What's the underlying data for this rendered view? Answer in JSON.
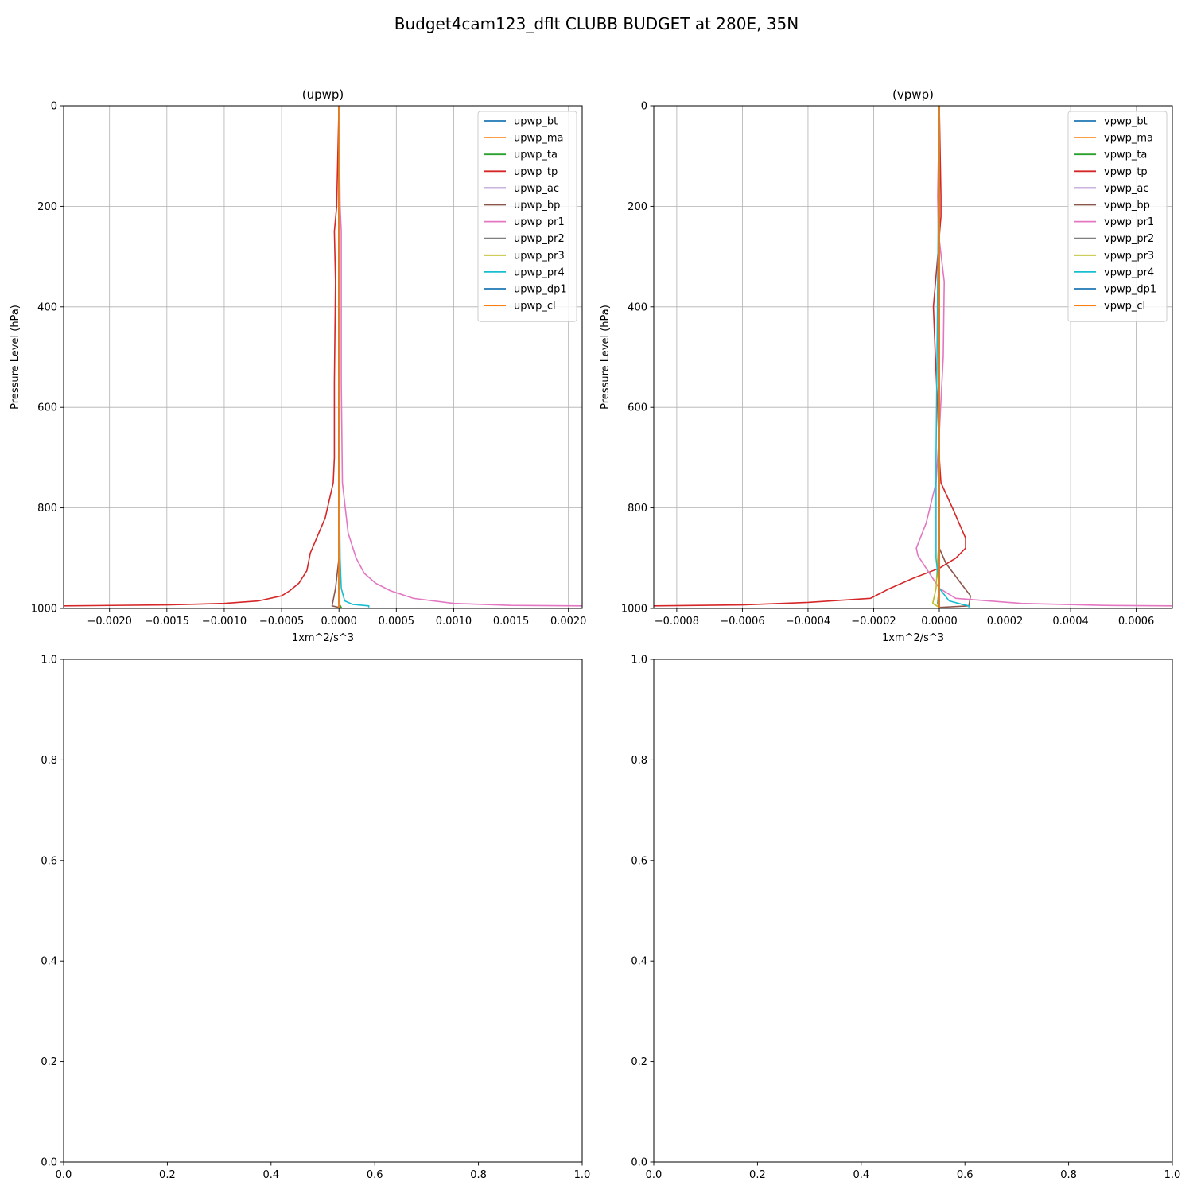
{
  "figure": {
    "title": "Budget4cam123_dflt CLUBB BUDGET at 280E, 35N"
  },
  "chart_data": [
    {
      "type": "line",
      "title": "(upwp)",
      "xlabel": "1xm^2/s^3",
      "ylabel": "Pressure Level (hPa)",
      "xlim": [
        -0.0024,
        0.00212
      ],
      "ylim": [
        1000,
        0
      ],
      "xticks": [
        -0.002,
        -0.0015,
        -0.001,
        -0.0005,
        0.0,
        0.0005,
        0.001,
        0.0015,
        0.002
      ],
      "xtick_labels": [
        "−0.0020",
        "−0.0015",
        "−0.0010",
        "−0.0005",
        "0.0000",
        "0.0005",
        "0.0010",
        "0.0015",
        "0.0020"
      ],
      "yticks": [
        0,
        200,
        400,
        600,
        800,
        1000
      ],
      "ytick_labels": [
        "0",
        "200",
        "400",
        "600",
        "800",
        "1000"
      ],
      "grid": true,
      "legend_position": "top-right",
      "series": [
        {
          "name": "upwp_bt",
          "color": "#1f77b4",
          "points": [
            [
              0,
              0
            ],
            [
              0,
              1000
            ]
          ]
        },
        {
          "name": "upwp_ma",
          "color": "#ff7f0e",
          "points": [
            [
              0,
              0
            ],
            [
              0,
              1000
            ]
          ]
        },
        {
          "name": "upwp_ta",
          "color": "#2ca02c",
          "points": [
            [
              0,
              0
            ],
            [
              0,
              990
            ],
            [
              2e-05,
              998
            ],
            [
              0,
              1000
            ]
          ]
        },
        {
          "name": "upwp_tp",
          "color": "#d62728",
          "points": [
            [
              0,
              0
            ],
            [
              -2e-05,
              200
            ],
            [
              -4e-05,
              250
            ],
            [
              -3e-05,
              350
            ],
            [
              -4e-05,
              550
            ],
            [
              -4e-05,
              700
            ],
            [
              -5e-05,
              750
            ],
            [
              -0.00012,
              820
            ],
            [
              -0.00025,
              890
            ],
            [
              -0.00028,
              925
            ],
            [
              -0.00035,
              950
            ],
            [
              -0.00043,
              965
            ],
            [
              -0.0005,
              975
            ],
            [
              -0.0007,
              985
            ],
            [
              -0.001,
              990
            ],
            [
              -0.0015,
              993
            ],
            [
              -0.0024,
              995
            ]
          ]
        },
        {
          "name": "upwp_ac",
          "color": "#9467bd",
          "points": [
            [
              0,
              0
            ],
            [
              0,
              1000
            ]
          ]
        },
        {
          "name": "upwp_bp",
          "color": "#8c564b",
          "points": [
            [
              0,
              0
            ],
            [
              0,
              900
            ],
            [
              -3e-05,
              960
            ],
            [
              -6e-05,
              995
            ],
            [
              0,
              998
            ]
          ]
        },
        {
          "name": "upwp_pr1",
          "color": "#e377c2",
          "points": [
            [
              0,
              0
            ],
            [
              1e-05,
              200
            ],
            [
              2e-05,
              250
            ],
            [
              2e-05,
              550
            ],
            [
              3e-05,
              750
            ],
            [
              8e-05,
              850
            ],
            [
              0.00015,
              900
            ],
            [
              0.00022,
              930
            ],
            [
              0.00032,
              950
            ],
            [
              0.00045,
              965
            ],
            [
              0.00065,
              980
            ],
            [
              0.001,
              990
            ],
            [
              0.0015,
              994
            ],
            [
              0.00212,
              995
            ]
          ]
        },
        {
          "name": "upwp_pr2",
          "color": "#7f7f7f",
          "points": [
            [
              0,
              0
            ],
            [
              0,
              1000
            ]
          ]
        },
        {
          "name": "upwp_pr3",
          "color": "#bcbd22",
          "points": [
            [
              0,
              0
            ],
            [
              0,
              1000
            ]
          ]
        },
        {
          "name": "upwp_pr4",
          "color": "#17becf",
          "points": [
            [
              0,
              0
            ],
            [
              0,
              700
            ],
            [
              1e-05,
              900
            ],
            [
              2e-05,
              960
            ],
            [
              5e-05,
              985
            ],
            [
              0.00012,
              992
            ],
            [
              0.00026,
              995
            ],
            [
              0.00026,
              998
            ]
          ]
        },
        {
          "name": "upwp_dp1",
          "color": "#1f77b4",
          "points": [
            [
              0,
              0
            ],
            [
              0,
              1000
            ]
          ]
        },
        {
          "name": "upwp_cl",
          "color": "#ff7f0e",
          "points": [
            [
              0,
              0
            ],
            [
              0,
              1000
            ]
          ]
        }
      ]
    },
    {
      "type": "line",
      "title": "(vpwp)",
      "xlabel": "1xm^2/s^3",
      "ylabel": "Pressure Level (hPa)",
      "xlim": [
        -0.00087,
        0.00071
      ],
      "ylim": [
        1000,
        0
      ],
      "xticks": [
        -0.0008,
        -0.0006,
        -0.0004,
        -0.0002,
        0.0,
        0.0002,
        0.0004,
        0.0006
      ],
      "xtick_labels": [
        "−0.0008",
        "−0.0006",
        "−0.0004",
        "−0.0002",
        "0.0000",
        "0.0002",
        "0.0004",
        "0.0006"
      ],
      "yticks": [
        0,
        200,
        400,
        600,
        800,
        1000
      ],
      "ytick_labels": [
        "0",
        "200",
        "400",
        "600",
        "800",
        "1000"
      ],
      "grid": true,
      "legend_position": "top-right",
      "series": [
        {
          "name": "vpwp_bt",
          "color": "#1f77b4",
          "points": [
            [
              0,
              0
            ],
            [
              0,
              1000
            ]
          ]
        },
        {
          "name": "vpwp_ma",
          "color": "#ff7f0e",
          "points": [
            [
              0,
              0
            ],
            [
              0,
              1000
            ]
          ]
        },
        {
          "name": "vpwp_ta",
          "color": "#2ca02c",
          "points": [
            [
              0,
              0
            ],
            [
              0,
              950
            ],
            [
              -5e-06,
              990
            ],
            [
              0,
              1000
            ]
          ]
        },
        {
          "name": "vpwp_tp",
          "color": "#d62728",
          "points": [
            [
              0,
              0
            ],
            [
              5e-06,
              180
            ],
            [
              5e-06,
              220
            ],
            [
              -5e-06,
              300
            ],
            [
              -1.8e-05,
              400
            ],
            [
              -1.2e-05,
              500
            ],
            [
              -5e-06,
              600
            ],
            [
              0,
              700
            ],
            [
              5e-06,
              750
            ],
            [
              4e-05,
              800
            ],
            [
              8e-05,
              860
            ],
            [
              8e-05,
              880
            ],
            [
              5e-05,
              900
            ],
            [
              0.0,
              920
            ],
            [
              -8e-05,
              940
            ],
            [
              -0.00015,
              960
            ],
            [
              -0.00021,
              980
            ],
            [
              -0.0004,
              988
            ],
            [
              -0.0006,
              993
            ],
            [
              -0.00087,
              995
            ]
          ]
        },
        {
          "name": "vpwp_ac",
          "color": "#9467bd",
          "points": [
            [
              0,
              0
            ],
            [
              0,
              1000
            ]
          ]
        },
        {
          "name": "vpwp_bp",
          "color": "#8c564b",
          "points": [
            [
              0,
              0
            ],
            [
              0,
              880
            ],
            [
              2e-05,
              910
            ],
            [
              6e-05,
              945
            ],
            [
              9.5e-05,
              975
            ],
            [
              9e-05,
              995
            ],
            [
              0,
              998
            ]
          ]
        },
        {
          "name": "vpwp_pr1",
          "color": "#e377c2",
          "points": [
            [
              0,
              0
            ],
            [
              -5e-06,
              180
            ],
            [
              -3e-06,
              250
            ],
            [
              1.5e-05,
              350
            ],
            [
              1.2e-05,
              500
            ],
            [
              0,
              650
            ],
            [
              -1e-05,
              750
            ],
            [
              -4e-05,
              830
            ],
            [
              -7e-05,
              880
            ],
            [
              -6.5e-05,
              895
            ],
            [
              -3e-05,
              930
            ],
            [
              0.0,
              960
            ],
            [
              5e-05,
              980
            ],
            [
              0.00025,
              990
            ],
            [
              0.0005,
              994
            ],
            [
              0.00071,
              995
            ]
          ]
        },
        {
          "name": "vpwp_pr2",
          "color": "#7f7f7f",
          "points": [
            [
              0,
              0
            ],
            [
              0,
              1000
            ]
          ]
        },
        {
          "name": "vpwp_pr3",
          "color": "#bcbd22",
          "points": [
            [
              0,
              0
            ],
            [
              0,
              850
            ],
            [
              -1e-05,
              960
            ],
            [
              -2e-05,
              990
            ],
            [
              0,
              998
            ]
          ]
        },
        {
          "name": "vpwp_pr4",
          "color": "#17becf",
          "points": [
            [
              0,
              0
            ],
            [
              -1e-05,
              700
            ],
            [
              -1e-05,
              900
            ],
            [
              0.0,
              960
            ],
            [
              3e-05,
              985
            ],
            [
              7e-05,
              992
            ],
            [
              9e-05,
              995
            ],
            [
              9e-05,
              998
            ]
          ]
        },
        {
          "name": "vpwp_dp1",
          "color": "#1f77b4",
          "points": [
            [
              0,
              0
            ],
            [
              0,
              1000
            ]
          ]
        },
        {
          "name": "vpwp_cl",
          "color": "#ff7f0e",
          "points": [
            [
              0,
              0
            ],
            [
              0,
              1000
            ]
          ]
        }
      ]
    },
    {
      "type": "line",
      "title": "",
      "xlim": [
        0,
        1
      ],
      "ylim": [
        0,
        1
      ],
      "xticks": [
        0,
        0.2,
        0.4,
        0.6,
        0.8,
        1.0
      ],
      "xtick_labels": [
        "0.0",
        "0.2",
        "0.4",
        "0.6",
        "0.8",
        "1.0"
      ],
      "yticks": [
        0,
        0.2,
        0.4,
        0.6,
        0.8,
        1.0
      ],
      "ytick_labels": [
        "0.0",
        "0.2",
        "0.4",
        "0.6",
        "0.8",
        "1.0"
      ],
      "grid": false,
      "series": []
    },
    {
      "type": "line",
      "title": "",
      "xlim": [
        0,
        1
      ],
      "ylim": [
        0,
        1
      ],
      "xticks": [
        0,
        0.2,
        0.4,
        0.6,
        0.8,
        1.0
      ],
      "xtick_labels": [
        "0.0",
        "0.2",
        "0.4",
        "0.6",
        "0.8",
        "1.0"
      ],
      "yticks": [
        0,
        0.2,
        0.4,
        0.6,
        0.8,
        1.0
      ],
      "ytick_labels": [
        "0.0",
        "0.2",
        "0.4",
        "0.6",
        "0.8",
        "1.0"
      ],
      "grid": false,
      "series": []
    }
  ]
}
